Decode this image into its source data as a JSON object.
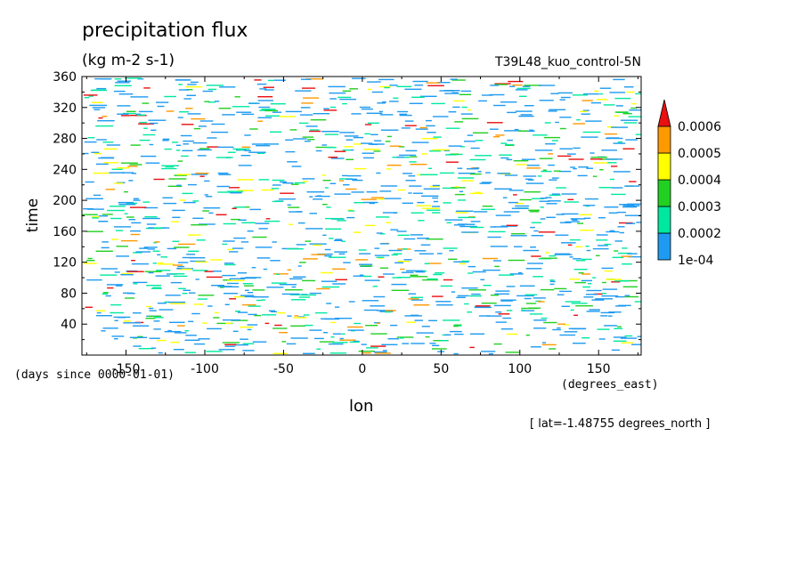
{
  "chart_data": {
    "type": "heatmap",
    "title": "precipitation flux",
    "units": "(kg m-2 s-1)",
    "run_label": "T39L48_kuo_control-5N",
    "xlabel": "lon",
    "ylabel": "time",
    "x_units": "(degrees_east)",
    "y_units": "(days since 0000-01-01)",
    "annotation": "[ lat=-1.48755 degrees_north ]",
    "xlim": [
      -178,
      177
    ],
    "ylim": [
      0,
      360
    ],
    "x_ticks": [
      -150,
      -100,
      -50,
      0,
      50,
      100,
      150
    ],
    "x_tick_labels": [
      "-150",
      "-100",
      "-50",
      "0",
      "50",
      "100",
      "150"
    ],
    "y_ticks": [
      40,
      80,
      120,
      160,
      200,
      240,
      280,
      320,
      360
    ],
    "y_tick_labels": [
      "40",
      "80",
      "120",
      "160",
      "200",
      "240",
      "280",
      "320",
      "360"
    ],
    "colorbar": {
      "levels": [
        0.0001,
        0.0002,
        0.0003,
        0.0004,
        0.0005,
        0.0006
      ],
      "labels": [
        "1e-04",
        "0.0002",
        "0.0003",
        "0.0004",
        "0.0005",
        "0.0006"
      ],
      "colors": [
        "#1e9bf0",
        "#00e8a0",
        "#22d022",
        "#ffff00",
        "#ff9900",
        "#e81010"
      ],
      "extend": "max"
    },
    "background": "#ffffff",
    "field_note": "sparse streaks of precipitation scattered over all longitudes and times"
  }
}
